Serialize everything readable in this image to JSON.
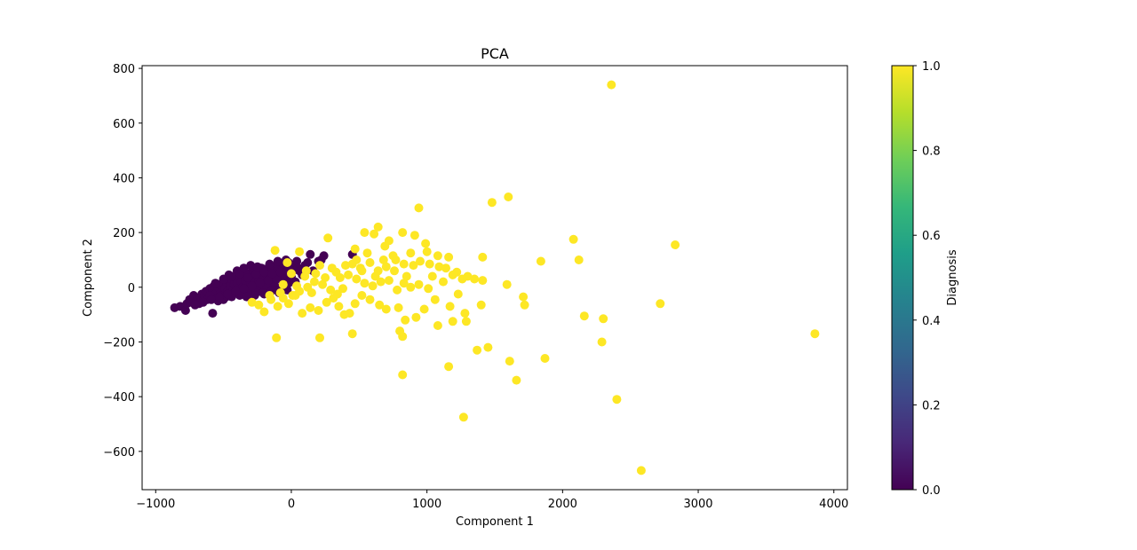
{
  "chart_data": {
    "type": "scatter",
    "title": "PCA",
    "xlabel": "Component 1",
    "ylabel": "Component 2",
    "xlim": [
      -1100,
      4100
    ],
    "ylim": [
      -740,
      810
    ],
    "xticks": [
      -1000,
      0,
      1000,
      2000,
      3000,
      4000
    ],
    "xtick_labels": [
      "−1000",
      "0",
      "1000",
      "2000",
      "3000",
      "4000"
    ],
    "yticks": [
      -600,
      -400,
      -200,
      0,
      200,
      400,
      600,
      800
    ],
    "ytick_labels": [
      "−600",
      "−400",
      "−200",
      "0",
      "200",
      "400",
      "600",
      "800"
    ],
    "grid": false,
    "colorbar": {
      "label": "Diagnosis",
      "range": [
        0.0,
        1.0
      ],
      "ticks": [
        0.0,
        0.2,
        0.4,
        0.6,
        0.8,
        1.0
      ],
      "tick_labels": [
        "0.0",
        "0.2",
        "0.4",
        "0.6",
        "0.8",
        "1.0"
      ],
      "colormap": "viridis",
      "colors": [
        "#440154",
        "#482878",
        "#3e4989",
        "#31688e",
        "#26828e",
        "#1f9e89",
        "#35b779",
        "#6ece58",
        "#b5de2b",
        "#fde725"
      ]
    },
    "series": [
      {
        "diagnosis": 0,
        "color": "#440154",
        "points": [
          [
            -860,
            -75
          ],
          [
            -820,
            -70
          ],
          [
            -780,
            -85
          ],
          [
            -770,
            -60
          ],
          [
            -750,
            -45
          ],
          [
            -740,
            -55
          ],
          [
            -720,
            -30
          ],
          [
            -700,
            -50
          ],
          [
            -690,
            -40
          ],
          [
            -680,
            -60
          ],
          [
            -670,
            -35
          ],
          [
            -660,
            -25
          ],
          [
            -650,
            -50
          ],
          [
            -640,
            -30
          ],
          [
            -630,
            -15
          ],
          [
            -620,
            -45
          ],
          [
            -610,
            -20
          ],
          [
            -600,
            -5
          ],
          [
            -590,
            -35
          ],
          [
            -580,
            -10
          ],
          [
            -570,
            5
          ],
          [
            -560,
            -25
          ],
          [
            -550,
            -40
          ],
          [
            -540,
            0
          ],
          [
            -530,
            10
          ],
          [
            -520,
            -20
          ],
          [
            -510,
            -30
          ],
          [
            -500,
            15
          ],
          [
            -490,
            -5
          ],
          [
            -480,
            20
          ],
          [
            -470,
            -15
          ],
          [
            -460,
            25
          ],
          [
            -450,
            5
          ],
          [
            -440,
            30
          ],
          [
            -430,
            -10
          ],
          [
            -420,
            10
          ],
          [
            -410,
            35
          ],
          [
            -400,
            15
          ],
          [
            -390,
            -5
          ],
          [
            -380,
            40
          ],
          [
            -370,
            20
          ],
          [
            -360,
            0
          ],
          [
            -350,
            45
          ],
          [
            -340,
            25
          ],
          [
            -330,
            10
          ],
          [
            -320,
            50
          ],
          [
            -310,
            30
          ],
          [
            -300,
            15
          ],
          [
            -290,
            55
          ],
          [
            -280,
            35
          ],
          [
            -270,
            20
          ],
          [
            -260,
            60
          ],
          [
            -250,
            40
          ],
          [
            -240,
            25
          ],
          [
            -230,
            10
          ],
          [
            -220,
            45
          ],
          [
            -210,
            65
          ],
          [
            -200,
            30
          ],
          [
            -190,
            50
          ],
          [
            -180,
            15
          ],
          [
            -170,
            70
          ],
          [
            -160,
            35
          ],
          [
            -150,
            55
          ],
          [
            -140,
            20
          ],
          [
            -130,
            75
          ],
          [
            -120,
            40
          ],
          [
            -110,
            60
          ],
          [
            -100,
            80
          ],
          [
            -90,
            45
          ],
          [
            -80,
            30
          ],
          [
            -70,
            65
          ],
          [
            -60,
            85
          ],
          [
            -50,
            50
          ],
          [
            -40,
            35
          ],
          [
            -30,
            70
          ],
          [
            -20,
            90
          ],
          [
            -10,
            55
          ],
          [
            0,
            40
          ],
          [
            20,
            75
          ],
          [
            40,
            95
          ],
          [
            60,
            60
          ],
          [
            80,
            45
          ],
          [
            100,
            80
          ],
          [
            140,
            120
          ],
          [
            200,
            95
          ],
          [
            240,
            115
          ],
          [
            450,
            120
          ],
          [
            -580,
            -95
          ],
          [
            -600,
            -30
          ],
          [
            -540,
            -50
          ],
          [
            -480,
            -35
          ],
          [
            -420,
            -20
          ],
          [
            -360,
            -25
          ],
          [
            -300,
            -10
          ],
          [
            -240,
            -5
          ],
          [
            -180,
            0
          ],
          [
            -120,
            5
          ],
          [
            -60,
            10
          ],
          [
            -500,
            -45
          ],
          [
            -440,
            -35
          ],
          [
            -380,
            -30
          ],
          [
            -320,
            -15
          ],
          [
            -260,
            -20
          ],
          [
            -200,
            -25
          ],
          [
            -140,
            -10
          ],
          [
            -80,
            -5
          ],
          [
            -20,
            15
          ],
          [
            30,
            20
          ],
          [
            -460,
            45
          ],
          [
            -400,
            60
          ],
          [
            -340,
            55
          ],
          [
            -280,
            65
          ],
          [
            -220,
            70
          ],
          [
            -160,
            85
          ],
          [
            -100,
            95
          ],
          [
            -40,
            100
          ],
          [
            -710,
            -65
          ],
          [
            -650,
            -55
          ],
          [
            -590,
            -45
          ],
          [
            -530,
            -35
          ],
          [
            -470,
            -25
          ],
          [
            -410,
            -15
          ],
          [
            -350,
            -5
          ],
          [
            -290,
            5
          ],
          [
            -230,
            15
          ],
          [
            -170,
            25
          ],
          [
            -110,
            30
          ],
          [
            -50,
            45
          ],
          [
            10,
            60
          ],
          [
            -560,
            15
          ],
          [
            -500,
            30
          ],
          [
            -440,
            40
          ],
          [
            -380,
            50
          ],
          [
            -320,
            35
          ],
          [
            -260,
            50
          ],
          [
            -200,
            55
          ],
          [
            -140,
            50
          ],
          [
            -80,
            55
          ],
          [
            -30,
            60
          ],
          [
            50,
            70
          ],
          [
            120,
            90
          ],
          [
            160,
            60
          ],
          [
            220,
            100
          ],
          [
            -350,
            70
          ],
          [
            -300,
            80
          ],
          [
            -250,
            75
          ],
          [
            -330,
            -35
          ],
          [
            -270,
            -30
          ],
          [
            -210,
            -20
          ],
          [
            -150,
            -15
          ],
          [
            -90,
            -20
          ],
          [
            -30,
            -10
          ]
        ]
      },
      {
        "diagnosis": 1,
        "color": "#fde725",
        "points": [
          [
            2360,
            740
          ],
          [
            1600,
            330
          ],
          [
            1480,
            310
          ],
          [
            940,
            290
          ],
          [
            640,
            220
          ],
          [
            540,
            200
          ],
          [
            610,
            195
          ],
          [
            720,
            170
          ],
          [
            820,
            200
          ],
          [
            910,
            190
          ],
          [
            990,
            160
          ],
          [
            2080,
            175
          ],
          [
            2830,
            155
          ],
          [
            270,
            180
          ],
          [
            -120,
            135
          ],
          [
            60,
            130
          ],
          [
            470,
            140
          ],
          [
            560,
            125
          ],
          [
            690,
            150
          ],
          [
            750,
            115
          ],
          [
            880,
            125
          ],
          [
            1000,
            130
          ],
          [
            1080,
            115
          ],
          [
            1160,
            110
          ],
          [
            1410,
            110
          ],
          [
            1840,
            95
          ],
          [
            2120,
            100
          ],
          [
            400,
            80
          ],
          [
            450,
            85
          ],
          [
            510,
            70
          ],
          [
            580,
            90
          ],
          [
            640,
            60
          ],
          [
            700,
            75
          ],
          [
            770,
            100
          ],
          [
            830,
            85
          ],
          [
            900,
            80
          ],
          [
            950,
            95
          ],
          [
            1020,
            85
          ],
          [
            1090,
            75
          ],
          [
            1140,
            70
          ],
          [
            1220,
            55
          ],
          [
            1300,
            40
          ],
          [
            1350,
            30
          ],
          [
            1410,
            25
          ],
          [
            1590,
            10
          ],
          [
            1710,
            -35
          ],
          [
            1720,
            -65
          ],
          [
            330,
            55
          ],
          [
            360,
            35
          ],
          [
            420,
            45
          ],
          [
            480,
            30
          ],
          [
            540,
            15
          ],
          [
            600,
            5
          ],
          [
            660,
            20
          ],
          [
            720,
            25
          ],
          [
            780,
            -10
          ],
          [
            830,
            15
          ],
          [
            880,
            0
          ],
          [
            940,
            10
          ],
          [
            1010,
            -5
          ],
          [
            1060,
            -45
          ],
          [
            1170,
            -70
          ],
          [
            1230,
            -25
          ],
          [
            1280,
            -95
          ],
          [
            1400,
            -65
          ],
          [
            1290,
            -125
          ],
          [
            2160,
            -105
          ],
          [
            2300,
            -115
          ],
          [
            2720,
            -60
          ],
          [
            3860,
            -170
          ],
          [
            -290,
            -55
          ],
          [
            -240,
            -65
          ],
          [
            -200,
            -90
          ],
          [
            -150,
            -45
          ],
          [
            -100,
            -70
          ],
          [
            -60,
            -40
          ],
          [
            -20,
            -60
          ],
          [
            30,
            -30
          ],
          [
            80,
            -95
          ],
          [
            140,
            -75
          ],
          [
            200,
            -85
          ],
          [
            260,
            -55
          ],
          [
            310,
            -40
          ],
          [
            350,
            -70
          ],
          [
            390,
            -100
          ],
          [
            430,
            -95
          ],
          [
            470,
            -60
          ],
          [
            520,
            -30
          ],
          [
            580,
            -45
          ],
          [
            650,
            -65
          ],
          [
            700,
            -80
          ],
          [
            790,
            -75
          ],
          [
            840,
            -120
          ],
          [
            920,
            -110
          ],
          [
            980,
            -80
          ],
          [
            1080,
            -140
          ],
          [
            1190,
            -125
          ],
          [
            -110,
            -185
          ],
          [
            210,
            -185
          ],
          [
            450,
            -170
          ],
          [
            800,
            -160
          ],
          [
            820,
            -180
          ],
          [
            1450,
            -220
          ],
          [
            1370,
            -230
          ],
          [
            1610,
            -270
          ],
          [
            1870,
            -260
          ],
          [
            1160,
            -290
          ],
          [
            820,
            -320
          ],
          [
            1660,
            -340
          ],
          [
            2290,
            -200
          ],
          [
            2400,
            -410
          ],
          [
            1270,
            -475
          ],
          [
            2580,
            -670
          ],
          [
            0,
            50
          ],
          [
            100,
            40
          ],
          [
            170,
            20
          ],
          [
            230,
            10
          ],
          [
            290,
            -10
          ],
          [
            340,
            -25
          ],
          [
            380,
            -5
          ],
          [
            150,
            -20
          ],
          [
            60,
            -15
          ],
          [
            10,
            -30
          ],
          [
            -80,
            -20
          ],
          [
            -160,
            -30
          ],
          [
            -60,
            10
          ],
          [
            40,
            5
          ],
          [
            120,
            0
          ],
          [
            250,
            35
          ],
          [
            300,
            70
          ],
          [
            180,
            50
          ],
          [
            210,
            80
          ],
          [
            110,
            60
          ],
          [
            -30,
            90
          ],
          [
            480,
            100
          ],
          [
            520,
            60
          ],
          [
            620,
            40
          ],
          [
            680,
            100
          ],
          [
            1120,
            20
          ],
          [
            1190,
            45
          ],
          [
            850,
            40
          ],
          [
            760,
            60
          ],
          [
            1040,
            40
          ],
          [
            1260,
            30
          ]
        ]
      }
    ]
  }
}
